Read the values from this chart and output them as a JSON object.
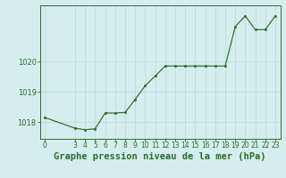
{
  "x": [
    0,
    3,
    4,
    5,
    6,
    7,
    8,
    9,
    10,
    11,
    12,
    13,
    14,
    15,
    16,
    17,
    18,
    19,
    20,
    21,
    22,
    23
  ],
  "y": [
    1018.15,
    1017.8,
    1017.75,
    1017.78,
    1018.3,
    1018.3,
    1018.32,
    1018.75,
    1019.2,
    1019.52,
    1019.85,
    1019.85,
    1019.85,
    1019.85,
    1019.85,
    1019.85,
    1019.85,
    1021.15,
    1021.5,
    1021.05,
    1021.05,
    1021.5
  ],
  "line_color": "#2d6a2d",
  "marker_color": "#2d6a2d",
  "bg_color": "#d4eeed",
  "grid_color": "#b8d8d8",
  "title": "Graphe pression niveau de la mer (hPa)",
  "ylim_min": 1017.45,
  "ylim_max": 1021.85,
  "yticks": [
    1018,
    1019,
    1020
  ],
  "xtick_labels": [
    "0",
    "3",
    "4",
    "5",
    "6",
    "7",
    "8",
    "9",
    "10",
    "11",
    "12",
    "13",
    "14",
    "15",
    "16",
    "17",
    "18",
    "19",
    "20",
    "21",
    "22",
    "23"
  ],
  "title_fontsize": 7.5,
  "tick_fontsize": 6.0,
  "axis_color": "#2d6a2d"
}
